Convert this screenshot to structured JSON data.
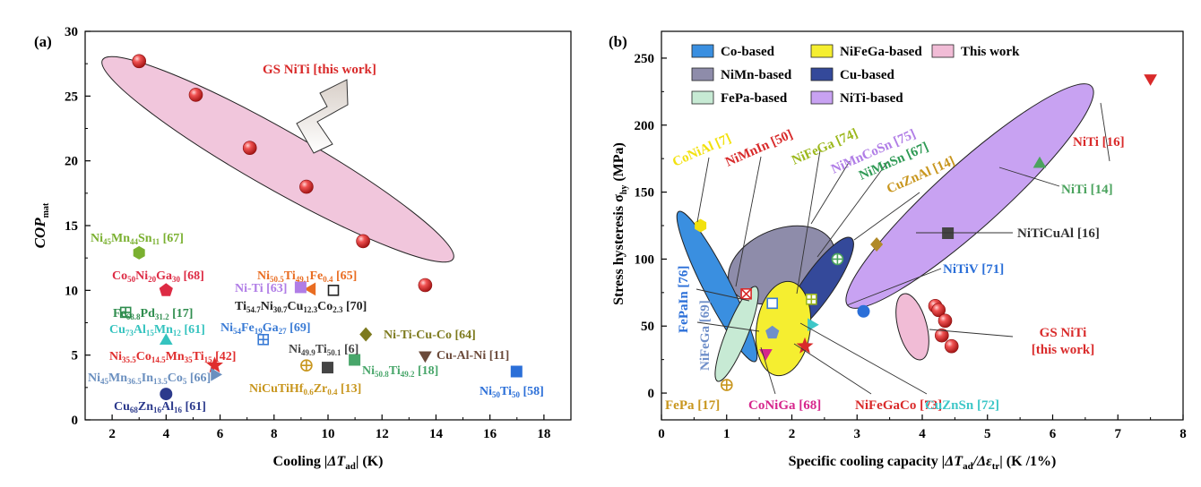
{
  "panels": [
    {
      "label": "(a)",
      "xlabel_prefix": "Cooling ",
      "xlabel_sym": "|ΔT",
      "xlabel_sub": "ad",
      "xlabel_suffix": "| (K)",
      "ylabel_main": "COP",
      "ylabel_sub": "mat",
      "x_ticks": [
        "2",
        "4",
        "6",
        "8",
        "10",
        "12",
        "14",
        "16",
        "18"
      ],
      "y_ticks": [
        "0",
        "5",
        "10",
        "15",
        "20",
        "25",
        "30"
      ]
    },
    {
      "label": "(b)",
      "xlabel_prefix": "Specific cooling capacity ",
      "xlabel_sym": "|ΔT",
      "xlabel_sub": "ad",
      "xlabel_mid": "/Δε",
      "xlabel_sub2": "tr",
      "xlabel_suffix": "| (K /1%)",
      "ylabel_main": "Stress hysteresis σ",
      "ylabel_sub": "hy",
      "ylabel_suffix": " (MPa)",
      "x_ticks": [
        "0",
        "1",
        "2",
        "3",
        "4",
        "5",
        "6",
        "7",
        "8"
      ],
      "y_ticks": [
        "0",
        "50",
        "100",
        "150",
        "200",
        "250"
      ]
    }
  ],
  "chart_data": [
    {
      "type": "scatter",
      "panel": "(a)",
      "xlabel": "Cooling |ΔTad| (K)",
      "ylabel": "COPmat",
      "xlim": [
        1,
        19
      ],
      "ylim": [
        0,
        30
      ],
      "grid": false,
      "series": [
        {
          "name": "GS NiTi [this work]",
          "color": "#d92a2a",
          "marker": "sphere",
          "points": [
            [
              3.0,
              27.7
            ],
            [
              5.1,
              25.1
            ],
            [
              7.1,
              21.0
            ],
            [
              9.2,
              18.0
            ],
            [
              11.3,
              13.8
            ],
            [
              13.6,
              10.4
            ]
          ]
        }
      ],
      "annotations": [
        {
          "text": "GS NiTi [this work]",
          "color": "#d92a2a"
        }
      ],
      "points": [
        {
          "label": "Ni45Mn44Sn11 [67]",
          "x": 3.0,
          "y": 12.9,
          "marker": "hexagon",
          "color": "#7ab030"
        },
        {
          "label": "Co50Ni20Ga30 [68]",
          "x": 4.0,
          "y": 10.0,
          "marker": "pentagon",
          "color": "#dd2b44"
        },
        {
          "label": "Ni50.5Ti49.1Fe0.4 [65]",
          "x": 9.4,
          "y": 10.1,
          "marker": "triangle-left",
          "color": "#e96d22"
        },
        {
          "label": "Ni-Ti [63]",
          "x": 9.0,
          "y": 10.2,
          "marker": "square",
          "color": "#b07de6"
        },
        {
          "label": "Ti54.7Ni30.7Cu12.3Co2.3 [70]",
          "x": 10.2,
          "y": 10.0,
          "marker": "square-open",
          "color": "#222222"
        },
        {
          "label": "Fe68.8Pd31.2 [17]",
          "x": 2.5,
          "y": 8.3,
          "marker": "square-cross",
          "color": "#2f8d4e"
        },
        {
          "label": "Cu73Al15Mn12 [61]",
          "x": 4.0,
          "y": 6.1,
          "marker": "triangle",
          "color": "#35c3bf"
        },
        {
          "label": "Ni54Fe19Ga27 [69]",
          "x": 7.6,
          "y": 6.2,
          "marker": "square-cross",
          "color": "#3a7bd5"
        },
        {
          "label": "Ni-Ti-Cu-Co [64]",
          "x": 11.4,
          "y": 6.6,
          "marker": "diamond",
          "color": "#7d7a1e"
        },
        {
          "label": "Ni35.5Co14.5Mn35Ti15 [42]",
          "x": 5.8,
          "y": 4.2,
          "marker": "star",
          "color": "#e02d2d"
        },
        {
          "label": "Ni49.9Ti50.1 [6]",
          "x": 10.0,
          "y": 4.0,
          "marker": "square",
          "color": "#444444"
        },
        {
          "label": "Cu-Al-Ni [11]",
          "x": 13.6,
          "y": 5.0,
          "marker": "triangle-down",
          "color": "#6b4a3a"
        },
        {
          "label": "Ni50.8Ti49.2 [18]",
          "x": 11.0,
          "y": 4.6,
          "marker": "square",
          "color": "#48a66a"
        },
        {
          "label": "NiCuTiHf0.6Zr0.4 [13]",
          "x": 9.2,
          "y": 4.2,
          "marker": "circle-cross",
          "color": "#c8961e"
        },
        {
          "label": "Ni45Mn36.5In13.5Co5 [66]",
          "x": 5.8,
          "y": 3.5,
          "marker": "triangle-right",
          "color": "#6a8fbf"
        },
        {
          "label": "Ni50Ti50 [58]",
          "x": 17.0,
          "y": 3.7,
          "marker": "square",
          "color": "#2b6fd8"
        },
        {
          "label": "Cu68Zn16Al16 [61]",
          "x": 4.0,
          "y": 2.0,
          "marker": "circle",
          "color": "#2c3a8c"
        }
      ],
      "point_labels": [
        {
          "parts": [
            [
              "Ni",
              ""
            ],
            [
              "45",
              "sub"
            ],
            [
              "Mn",
              ""
            ],
            [
              "44",
              "sub"
            ],
            [
              "Sn",
              ""
            ],
            [
              "11",
              "sub"
            ],
            [
              " [67]",
              ""
            ]
          ],
          "color": "#7ab030"
        },
        {
          "parts": [
            [
              "Co",
              ""
            ],
            [
              "50",
              "sub"
            ],
            [
              "Ni",
              ""
            ],
            [
              "20",
              "sub"
            ],
            [
              "Ga",
              ""
            ],
            [
              "30",
              "sub"
            ],
            [
              " [68]",
              ""
            ]
          ],
          "color": "#dd2b44"
        },
        {
          "parts": [
            [
              "Ni",
              ""
            ],
            [
              "50.5",
              "sub"
            ],
            [
              "Ti",
              ""
            ],
            [
              "49.1",
              "sub"
            ],
            [
              "Fe",
              ""
            ],
            [
              "0.4",
              "sub"
            ],
            [
              " [65]",
              ""
            ]
          ],
          "color": "#e96d22"
        },
        {
          "parts": [
            [
              "Ni-Ti [63]",
              ""
            ]
          ],
          "color": "#b07de6"
        },
        {
          "parts": [
            [
              "Ti",
              ""
            ],
            [
              "54.7",
              "sub"
            ],
            [
              "Ni",
              ""
            ],
            [
              "30.7",
              "sub"
            ],
            [
              "Cu",
              ""
            ],
            [
              "12.3",
              "sub"
            ],
            [
              "Co",
              ""
            ],
            [
              "2.3",
              "sub"
            ],
            [
              " [70]",
              ""
            ]
          ],
          "color": "#222222"
        },
        {
          "parts": [
            [
              "Fe",
              ""
            ],
            [
              "68.8",
              "sub"
            ],
            [
              "Pd",
              ""
            ],
            [
              "31.2",
              "sub"
            ],
            [
              " [17]",
              ""
            ]
          ],
          "color": "#2f8d4e"
        },
        {
          "parts": [
            [
              "Cu",
              ""
            ],
            [
              "73",
              "sub"
            ],
            [
              "Al",
              ""
            ],
            [
              "15",
              "sub"
            ],
            [
              "Mn",
              ""
            ],
            [
              "12",
              "sub"
            ],
            [
              " [61]",
              ""
            ]
          ],
          "color": "#35c3bf"
        },
        {
          "parts": [
            [
              "Ni",
              ""
            ],
            [
              "54",
              "sub"
            ],
            [
              "Fe",
              ""
            ],
            [
              "19",
              "sub"
            ],
            [
              "Ga",
              ""
            ],
            [
              "27",
              "sub"
            ],
            [
              " [69]",
              ""
            ]
          ],
          "color": "#3a7bd5"
        },
        {
          "parts": [
            [
              "Ni-Ti-Cu-Co [64]",
              ""
            ]
          ],
          "color": "#7d7a1e"
        },
        {
          "parts": [
            [
              "Ni",
              ""
            ],
            [
              "35.5",
              "sub"
            ],
            [
              "Co",
              ""
            ],
            [
              "14.5",
              "sub"
            ],
            [
              "Mn",
              ""
            ],
            [
              "35",
              "sub"
            ],
            [
              "Ti",
              ""
            ],
            [
              "15",
              "sub"
            ],
            [
              " [42]",
              ""
            ]
          ],
          "color": "#e02d2d"
        },
        {
          "parts": [
            [
              "Ni",
              ""
            ],
            [
              "49.9",
              "sub"
            ],
            [
              "Ti",
              ""
            ],
            [
              "50.1",
              "sub"
            ],
            [
              " [6]",
              ""
            ]
          ],
          "color": "#444444"
        },
        {
          "parts": [
            [
              "Cu-Al-Ni [11]",
              ""
            ]
          ],
          "color": "#6b4a3a"
        },
        {
          "parts": [
            [
              "Ni",
              ""
            ],
            [
              "50.8",
              "sub"
            ],
            [
              "Ti",
              ""
            ],
            [
              "49.2",
              "sub"
            ],
            [
              " [18]",
              ""
            ]
          ],
          "color": "#48a66a"
        },
        {
          "parts": [
            [
              "NiCuTiHf",
              ""
            ],
            [
              "0.6",
              "sub"
            ],
            [
              "Zr",
              ""
            ],
            [
              "0.4",
              "sub"
            ],
            [
              " [13]",
              ""
            ]
          ],
          "color": "#c8961e"
        },
        {
          "parts": [
            [
              "Ni",
              ""
            ],
            [
              "45",
              "sub"
            ],
            [
              "Mn",
              ""
            ],
            [
              "36.5",
              "sub"
            ],
            [
              "In",
              ""
            ],
            [
              "13.5",
              "sub"
            ],
            [
              "Co",
              ""
            ],
            [
              "5",
              "sub"
            ],
            [
              " [66]",
              ""
            ]
          ],
          "color": "#6a8fbf"
        },
        {
          "parts": [
            [
              "Ni",
              ""
            ],
            [
              "50",
              "sub"
            ],
            [
              "Ti",
              ""
            ],
            [
              "50",
              "sub"
            ],
            [
              " [58]",
              ""
            ]
          ],
          "color": "#2b6fd8"
        },
        {
          "parts": [
            [
              "Cu",
              ""
            ],
            [
              "68",
              "sub"
            ],
            [
              "Zn",
              ""
            ],
            [
              "16",
              "sub"
            ],
            [
              "Al",
              ""
            ],
            [
              "16",
              "sub"
            ],
            [
              " [61]",
              ""
            ]
          ],
          "color": "#2c3a8c"
        }
      ]
    },
    {
      "type": "scatter",
      "panel": "(b)",
      "xlabel": "Specific cooling capacity |ΔTad/Δεtr| (K /1%)",
      "ylabel": "Stress hysteresis σhy (MPa)",
      "xlim": [
        0,
        8
      ],
      "ylim": [
        -20,
        270
      ],
      "grid": false,
      "legend": {
        "placement": "top-left",
        "entries": [
          {
            "name": "Co-based",
            "color": "#3a8fe0"
          },
          {
            "name": "NiFeGa-based",
            "color": "#f5ee30"
          },
          {
            "name": "This work",
            "color": "#f1bcd6"
          },
          {
            "name": "NiMn-based",
            "color": "#8e8caa"
          },
          {
            "name": "Cu-based",
            "color": "#34499a"
          },
          {
            "name": "FePa-based",
            "color": "#c7ead4"
          },
          {
            "name": "NiTi-based",
            "color": "#c8a2f2"
          }
        ]
      },
      "points": [
        {
          "label": "NiTi [16]",
          "x": 7.5,
          "y": 235,
          "marker": "triangle-down",
          "color": "#d92a2a"
        },
        {
          "label": "NiTi [14]",
          "x": 5.8,
          "y": 171,
          "marker": "triangle",
          "color": "#4ba35e"
        },
        {
          "label": "NiTiCuAl [16]",
          "x": 4.4,
          "y": 119,
          "marker": "square",
          "color": "#444444"
        },
        {
          "label": "NiTiV [71]",
          "x": 3.1,
          "y": 61,
          "marker": "circle",
          "color": "#2b6fd8"
        },
        {
          "label": "CoNiAl [7]",
          "x": 0.6,
          "y": 125,
          "marker": "hexagon",
          "color": "#f2e10e"
        },
        {
          "label": "NiMnIn [50]",
          "x": 1.3,
          "y": 74,
          "marker": "square-x",
          "color": "#d82a2a"
        },
        {
          "label": "FePaIn [76]",
          "x": 1.7,
          "y": 67,
          "marker": "square-open",
          "color": "#3a7bd5"
        },
        {
          "label": "NiFeGa [74]",
          "x": 2.3,
          "y": 70,
          "marker": "square-cross",
          "color": "#9cb81c"
        },
        {
          "label": "NiMnCoSn [75]",
          "x": 2.7,
          "y": 100,
          "marker": "circle-cross",
          "color": "#4ba35e"
        },
        {
          "label": "NiMnSn [67]",
          "x": 2.7,
          "y": 100,
          "marker": "circle-cross",
          "color": "#4ba35e"
        },
        {
          "label": "CuZnAl [14]",
          "x": 3.3,
          "y": 111,
          "marker": "diamond",
          "color": "#b08a28"
        },
        {
          "label": "NiFeGa [69]",
          "x": 1.7,
          "y": 45,
          "marker": "pentagon",
          "color": "#6f8fc9"
        },
        {
          "label": "CoNiGa [68]",
          "x": 1.6,
          "y": 30,
          "marker": "triangle-down",
          "color": "#d6268c"
        },
        {
          "label": "NiFeGaCo [73]",
          "x": 2.2,
          "y": 35,
          "marker": "star",
          "color": "#d92a2a"
        },
        {
          "label": "CuZnSn [72]",
          "x": 2.3,
          "y": 51,
          "marker": "triangle-right",
          "color": "#3ec7c8"
        },
        {
          "label": "FePa [17]",
          "x": 1.0,
          "y": 6,
          "marker": "circle-cross",
          "color": "#c8961e"
        }
      ],
      "series": [
        {
          "name": "GS NiTi [this work]",
          "color": "#d92a2a",
          "marker": "sphere",
          "points": [
            [
              4.2,
              65
            ],
            [
              4.25,
              62
            ],
            [
              4.35,
              54
            ],
            [
              4.3,
              43
            ],
            [
              4.45,
              35
            ]
          ]
        }
      ],
      "callouts": [
        {
          "text": "CoNiAl [7]",
          "color": "#f2e10e"
        },
        {
          "text": "NiMnIn [50]",
          "color": "#d82a2a"
        },
        {
          "text": "NiFeGa [74]",
          "color": "#9cb81c"
        },
        {
          "text": "NiMnCoSn [75]",
          "color": "#b07de6"
        },
        {
          "text": "NiMnSn [67]",
          "color": "#2f9a55"
        },
        {
          "text": "CuZnAl [14]",
          "color": "#c8961e"
        },
        {
          "text": "NiTi [16]",
          "color": "#d92a2a"
        },
        {
          "text": "NiTi [14]",
          "color": "#4ba35e"
        },
        {
          "text": "NiTiCuAl [16]",
          "color": "#333333"
        },
        {
          "text": "NiTiV [71]",
          "color": "#2b6fd8"
        },
        {
          "text": "FePaIn [76]",
          "color": "#2b6fd8"
        },
        {
          "text": "NiFeGa [69]",
          "color": "#6f8fc9"
        },
        {
          "text": "GS NiTi",
          "color": "#d92a2a"
        },
        {
          "text": "[this work]",
          "color": "#d92a2a"
        },
        {
          "text": "FePa [17]",
          "color": "#c8961e"
        },
        {
          "text": "CoNiGa [68]",
          "color": "#d6268c"
        },
        {
          "text": "NiFeGaCo [73]",
          "color": "#d92a2a"
        },
        {
          "text": "CuZnSn [72]",
          "color": "#3ec7c8"
        }
      ]
    }
  ]
}
